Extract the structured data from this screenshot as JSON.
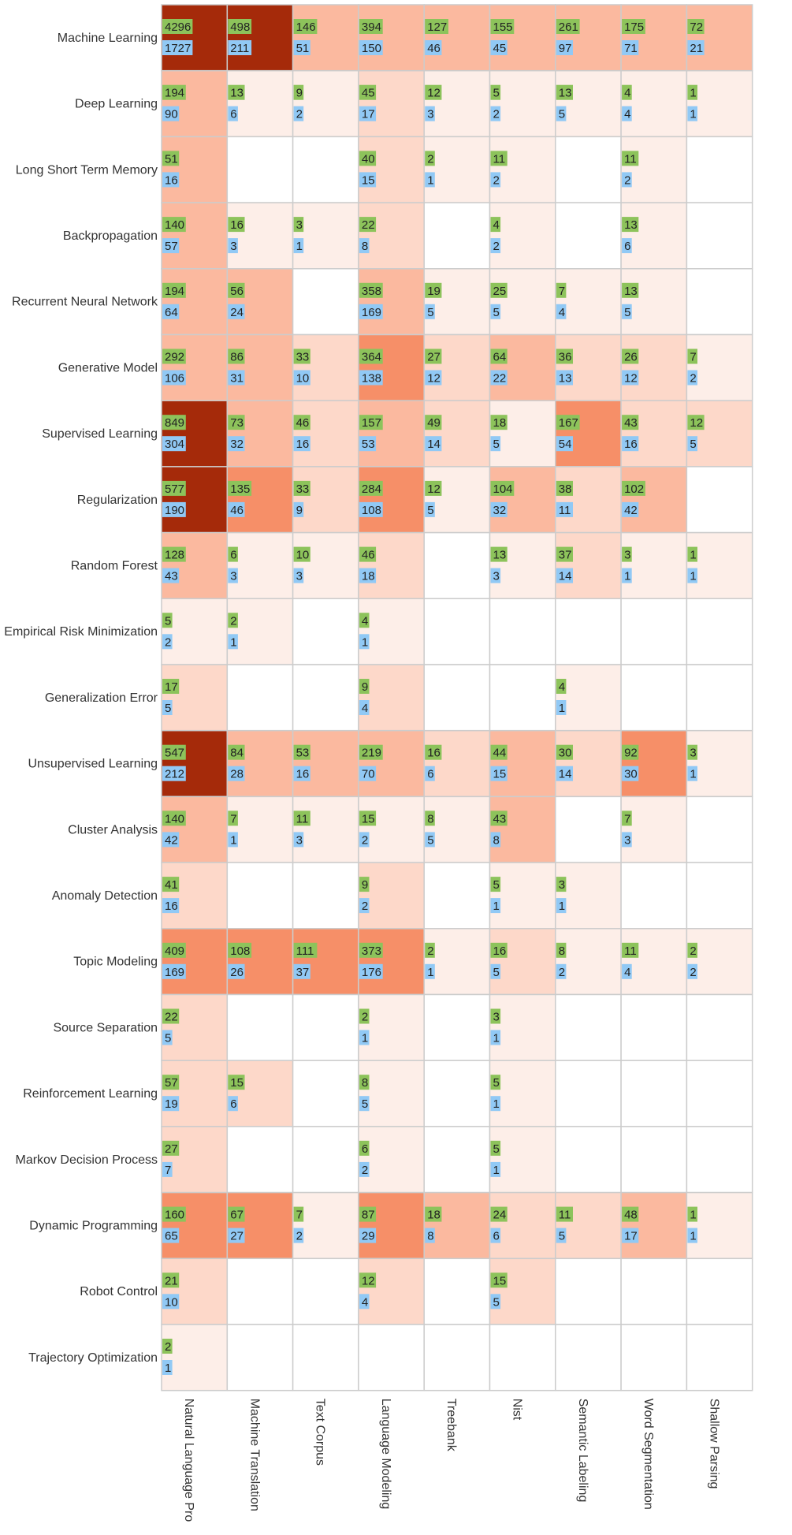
{
  "chart_data": {
    "type": "heatmap",
    "title": "",
    "xlabel": "",
    "ylabel": "",
    "rows": [
      "Machine Learning",
      "Deep Learning",
      "Long Short Term Memory",
      "Backpropagation",
      "Recurrent Neural Network",
      "Generative Model",
      "Supervised Learning",
      "Regularization",
      "Random Forest",
      "Empirical Risk Minimization",
      "Generalization Error",
      "Unsupervised Learning",
      "Cluster Analysis",
      "Anomaly Detection",
      "Topic Modeling",
      "Source Separation",
      "Reinforcement Learning",
      "Markov Decision Process",
      "Dynamic Programming",
      "Robot Control",
      "Trajectory Optimization"
    ],
    "columns": [
      "Natural Language Pro",
      "Machine Translation",
      "Text Corpus",
      "Language Modeling",
      "Treebank",
      "Nist",
      "Semantic Labeling",
      "Word Segmentation",
      "Shallow Parsing"
    ],
    "series": [
      {
        "values": [
          [
            4296,
            498,
            146,
            394,
            127,
            155,
            261,
            175,
            72
          ],
          [
            194,
            13,
            9,
            45,
            12,
            5,
            13,
            4,
            1
          ],
          [
            51,
            null,
            null,
            40,
            2,
            11,
            null,
            11,
            null
          ],
          [
            140,
            16,
            3,
            22,
            null,
            4,
            null,
            13,
            null
          ],
          [
            194,
            56,
            null,
            358,
            19,
            25,
            7,
            13,
            null
          ],
          [
            292,
            86,
            33,
            364,
            27,
            64,
            36,
            26,
            7
          ],
          [
            849,
            73,
            46,
            157,
            49,
            18,
            167,
            43,
            12
          ],
          [
            577,
            135,
            33,
            284,
            12,
            104,
            38,
            102,
            null
          ],
          [
            128,
            6,
            10,
            46,
            null,
            13,
            37,
            3,
            1
          ],
          [
            5,
            2,
            null,
            4,
            null,
            null,
            null,
            null,
            null
          ],
          [
            17,
            null,
            null,
            9,
            null,
            null,
            4,
            null,
            null
          ],
          [
            547,
            84,
            53,
            219,
            16,
            44,
            30,
            92,
            3
          ],
          [
            140,
            7,
            11,
            15,
            8,
            43,
            null,
            7,
            null
          ],
          [
            41,
            null,
            null,
            9,
            null,
            5,
            3,
            null,
            null
          ],
          [
            409,
            108,
            111,
            373,
            2,
            16,
            8,
            11,
            2
          ],
          [
            22,
            null,
            null,
            2,
            null,
            3,
            null,
            null,
            null
          ],
          [
            57,
            15,
            null,
            8,
            null,
            5,
            null,
            null,
            null
          ],
          [
            27,
            null,
            null,
            6,
            null,
            5,
            null,
            null,
            null
          ],
          [
            160,
            67,
            7,
            87,
            18,
            24,
            11,
            48,
            1
          ],
          [
            21,
            null,
            null,
            12,
            null,
            15,
            null,
            null,
            null
          ],
          [
            2,
            null,
            null,
            null,
            null,
            null,
            null,
            null,
            null
          ]
        ]
      },
      {
        "values": [
          [
            1727,
            211,
            51,
            150,
            46,
            45,
            97,
            71,
            21
          ],
          [
            90,
            6,
            2,
            17,
            3,
            2,
            5,
            4,
            1
          ],
          [
            16,
            null,
            null,
            15,
            1,
            2,
            null,
            2,
            null
          ],
          [
            57,
            3,
            1,
            8,
            null,
            2,
            null,
            6,
            null
          ],
          [
            64,
            24,
            null,
            169,
            5,
            5,
            4,
            5,
            null
          ],
          [
            106,
            31,
            10,
            138,
            12,
            22,
            13,
            12,
            2
          ],
          [
            304,
            32,
            16,
            53,
            14,
            5,
            54,
            16,
            5
          ],
          [
            190,
            46,
            9,
            108,
            5,
            32,
            11,
            42,
            null
          ],
          [
            43,
            3,
            3,
            18,
            null,
            3,
            14,
            1,
            1
          ],
          [
            2,
            1,
            null,
            1,
            null,
            null,
            null,
            null,
            null
          ],
          [
            5,
            null,
            null,
            4,
            null,
            null,
            1,
            null,
            null
          ],
          [
            212,
            28,
            16,
            70,
            6,
            15,
            14,
            30,
            1
          ],
          [
            42,
            1,
            3,
            2,
            5,
            8,
            null,
            3,
            null
          ],
          [
            16,
            null,
            null,
            2,
            null,
            1,
            1,
            null,
            null
          ],
          [
            169,
            26,
            37,
            176,
            1,
            5,
            2,
            4,
            2
          ],
          [
            5,
            null,
            null,
            1,
            null,
            1,
            null,
            null,
            null
          ],
          [
            19,
            6,
            null,
            5,
            null,
            1,
            null,
            null,
            null
          ],
          [
            7,
            null,
            null,
            2,
            null,
            1,
            null,
            null,
            null
          ],
          [
            65,
            27,
            2,
            29,
            8,
            6,
            5,
            17,
            1
          ],
          [
            10,
            null,
            null,
            4,
            null,
            5,
            null,
            null,
            null
          ],
          [
            1,
            null,
            null,
            null,
            null,
            null,
            null,
            null,
            null
          ]
        ]
      }
    ],
    "cell_intensity": [
      [
        5,
        5,
        3,
        3,
        3,
        3,
        3,
        3,
        3
      ],
      [
        3,
        1,
        1,
        2,
        1,
        1,
        1,
        1,
        1
      ],
      [
        3,
        0,
        0,
        2,
        1,
        1,
        0,
        1,
        0
      ],
      [
        3,
        1,
        1,
        2,
        0,
        1,
        0,
        1,
        0
      ],
      [
        3,
        3,
        0,
        3,
        1,
        1,
        1,
        1,
        0
      ],
      [
        3,
        3,
        2,
        4,
        2,
        3,
        2,
        2,
        1
      ],
      [
        5,
        3,
        2,
        3,
        2,
        1,
        4,
        2,
        2
      ],
      [
        5,
        4,
        2,
        4,
        1,
        3,
        2,
        3,
        0
      ],
      [
        3,
        1,
        1,
        2,
        0,
        1,
        2,
        1,
        1
      ],
      [
        1,
        1,
        0,
        1,
        0,
        0,
        0,
        0,
        0
      ],
      [
        2,
        0,
        0,
        2,
        0,
        0,
        1,
        0,
        0
      ],
      [
        5,
        3,
        3,
        3,
        2,
        3,
        2,
        4,
        1
      ],
      [
        3,
        1,
        1,
        1,
        1,
        3,
        0,
        1,
        0
      ],
      [
        2,
        0,
        0,
        2,
        0,
        1,
        1,
        0,
        0
      ],
      [
        4,
        4,
        4,
        4,
        1,
        2,
        1,
        1,
        1
      ],
      [
        2,
        0,
        0,
        1,
        0,
        1,
        0,
        0,
        0
      ],
      [
        2,
        2,
        0,
        1,
        0,
        1,
        0,
        0,
        0
      ],
      [
        2,
        0,
        0,
        1,
        0,
        1,
        0,
        0,
        0
      ],
      [
        4,
        4,
        1,
        4,
        3,
        2,
        2,
        3,
        1
      ],
      [
        2,
        0,
        0,
        2,
        0,
        2,
        0,
        0,
        0
      ],
      [
        1,
        0,
        0,
        0,
        0,
        0,
        0,
        0,
        0
      ]
    ],
    "colors": {
      "scale": [
        "#ffffff",
        "#fdeee8",
        "#fdd8c9",
        "#fbb99f",
        "#f68f68",
        "#a52a0a"
      ],
      "top_bar": "#8dc35b",
      "bottom_bar": "#91c9f5",
      "grid": "#cccccc"
    },
    "grid": true,
    "legend": "none"
  }
}
